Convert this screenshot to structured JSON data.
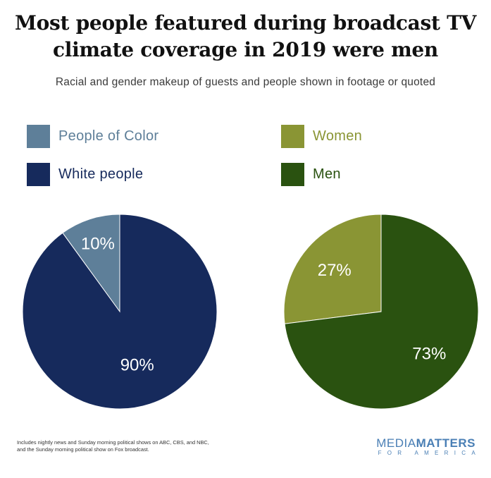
{
  "title_line1": "Most people featured during broadcast TV",
  "title_line2": "climate coverage in 2019 were men",
  "subtitle": "Racial and gender makeup of guests and people shown in footage or quoted",
  "legend": {
    "left": [
      {
        "label": "People of Color",
        "color": "#5e7f99"
      },
      {
        "label": "White people",
        "color": "#162a5c"
      }
    ],
    "right": [
      {
        "label": "Women",
        "color": "#8a9534"
      },
      {
        "label": "Men",
        "color": "#2a5210"
      }
    ]
  },
  "chart_data": [
    {
      "type": "pie",
      "categories": [
        "People of Color",
        "White people"
      ],
      "values": [
        10,
        90
      ],
      "data_labels": [
        "10%",
        "90%"
      ],
      "colors": [
        "#5e7f99",
        "#162a5c"
      ]
    },
    {
      "type": "pie",
      "categories": [
        "Women",
        "Men"
      ],
      "values": [
        27,
        73
      ],
      "data_labels": [
        "27%",
        "73%"
      ],
      "colors": [
        "#8a9534",
        "#2a5210"
      ]
    }
  ],
  "footnote": {
    "line1": "Includes nightly news and Sunday morning political shows on ABC, CBS, and NBC,",
    "line2": "and the Sunday morning political show on Fox broadcast."
  },
  "logo": {
    "media": "MEDIA",
    "matters": "MATTERS",
    "sub": "FOR AMERICA"
  }
}
